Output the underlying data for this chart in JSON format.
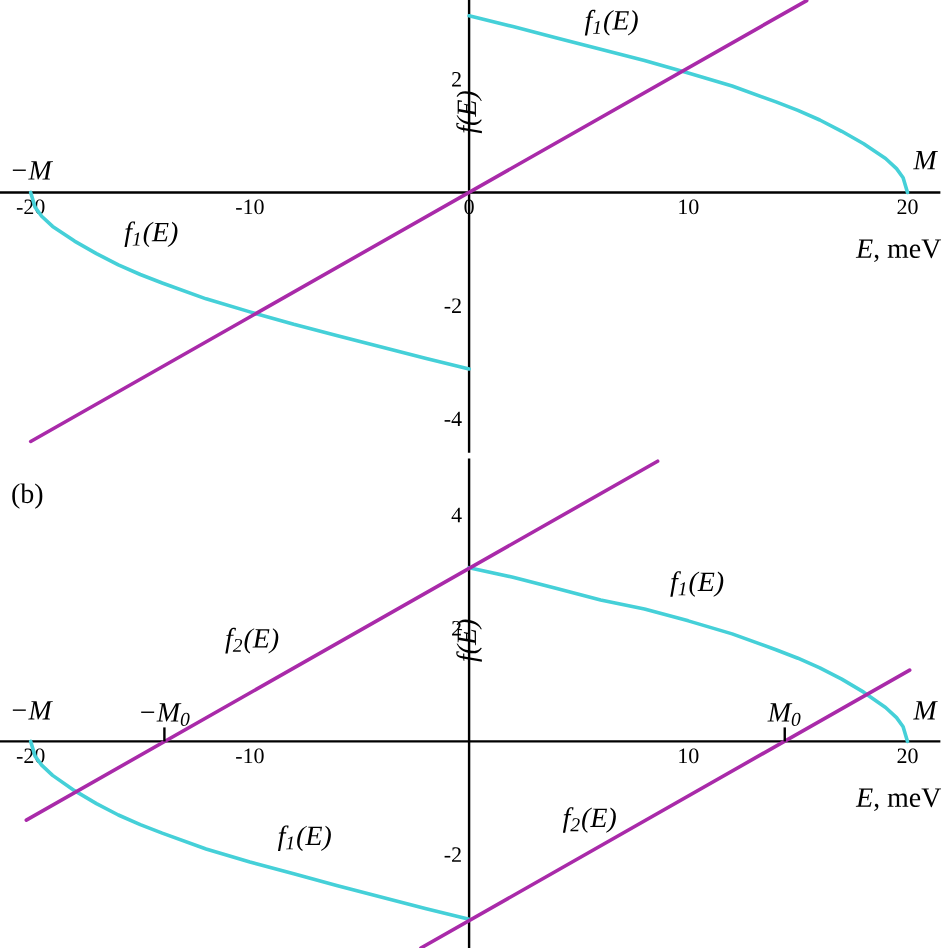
{
  "chart_data": [
    {
      "type": "line",
      "xlabel": "*E*, meV",
      "ylabel": "f(E)",
      "xlim": [
        -21.4,
        21.5
      ],
      "ylim": [
        -4.6,
        3.4
      ],
      "xticks": [
        -20,
        -10,
        0,
        10,
        20
      ],
      "yticks": [
        -4,
        -2,
        2
      ],
      "series": [
        {
          "color": "#45d0d8",
          "x": [
            -20,
            -19.8,
            -19.5,
            -19,
            -18,
            -17,
            -16,
            -15,
            -14,
            -12,
            -10,
            -8,
            -6,
            -4,
            -2,
            0
          ],
          "values": [
            0,
            -0.26,
            -0.42,
            -0.6,
            -0.86,
            -1.08,
            -1.28,
            -1.45,
            -1.6,
            -1.88,
            -2.11,
            -2.33,
            -2.53,
            -2.73,
            -2.93,
            -3.12
          ]
        },
        {
          "color": "#45d0d8",
          "x": [
            0,
            2,
            4,
            6,
            8,
            10,
            12,
            14,
            15,
            16,
            17,
            18,
            19,
            19.5,
            19.8,
            20
          ],
          "values": [
            3.12,
            2.93,
            2.73,
            2.53,
            2.33,
            2.11,
            1.88,
            1.6,
            1.45,
            1.28,
            1.08,
            0.86,
            0.6,
            0.42,
            0.26,
            0
          ]
        },
        {
          "color": "#a92aa9",
          "x": [
            -20,
            15.4
          ],
          "values": [
            -4.4,
            3.39
          ]
        }
      ],
      "annotations": [
        "f$_{1}$(E)",
        "f$_{1}$(E)",
        "−M",
        "M"
      ]
    },
    {
      "type": "line",
      "title": "(b)",
      "xlabel": "*E*, meV",
      "ylabel": "f(E)",
      "xlim": [
        -21.4,
        21.5
      ],
      "ylim": [
        -3.65,
        5.0
      ],
      "xticks": [
        -20,
        -10,
        10,
        20
      ],
      "yticks": [
        -2,
        2,
        4
      ],
      "series": [
        {
          "color": "#45d0d8",
          "x": [
            -20,
            -19.8,
            -19.5,
            -19,
            -18,
            -17,
            -16,
            -15,
            -14,
            -12,
            -10,
            -8,
            -6,
            -4,
            -2,
            0
          ],
          "values": [
            0,
            -0.26,
            -0.42,
            -0.6,
            -0.87,
            -1.1,
            -1.3,
            -1.47,
            -1.62,
            -1.9,
            -2.13,
            -2.34,
            -2.55,
            -2.75,
            -2.95,
            -3.14
          ]
        },
        {
          "color": "#45d0d8",
          "x": [
            0,
            2,
            4,
            6,
            8,
            10,
            12,
            14,
            15,
            16,
            17,
            18,
            19,
            19.5,
            19.8,
            20
          ],
          "values": [
            3.07,
            2.9,
            2.7,
            2.5,
            2.34,
            2.13,
            1.9,
            1.62,
            1.47,
            1.3,
            1.1,
            0.87,
            0.6,
            0.42,
            0.26,
            0
          ]
        },
        {
          "color": "#a92aa9",
          "x": [
            -20.2,
            8.6
          ],
          "values": [
            -1.39,
            4.95
          ]
        },
        {
          "color": "#a92aa9",
          "x": [
            -2.2,
            20.1
          ],
          "values": [
            -3.65,
            1.26
          ]
        }
      ],
      "annotations": [
        "f$_{2}$(E)",
        "f$_{1}$(E)",
        "f$_{1}$(E)",
        "f$_{2}$(E)",
        "−M",
        "M",
        {
          "text": "−M$_{0}$",
          "x": -13.9,
          "y": 0
        },
        {
          "text": "M$_{0}$",
          "x": 14.4,
          "y": 0
        }
      ]
    }
  ]
}
